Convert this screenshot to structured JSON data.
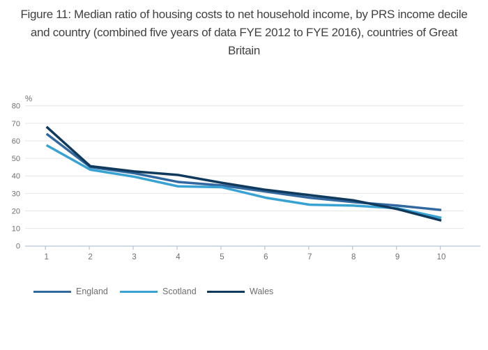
{
  "chart_data": {
    "type": "line",
    "title": "Figure 11: Median ratio of housing costs to net household income, by PRS income decile and country (combined five years of data FYE 2012 to FYE 2016), countries of Great Britain",
    "xlabel": "",
    "ylabel": "%",
    "x": [
      1,
      2,
      3,
      4,
      5,
      6,
      7,
      8,
      9,
      10
    ],
    "x_tick_labels": [
      "1",
      "2",
      "3",
      "4",
      "5",
      "6",
      "7",
      "8",
      "9",
      "10"
    ],
    "y_ticks": [
      0,
      10,
      20,
      30,
      40,
      50,
      60,
      70,
      80
    ],
    "ylim": [
      0,
      80
    ],
    "grid": true,
    "legend_position": "bottom",
    "series": [
      {
        "name": "England",
        "color": "#31689f",
        "values": [
          64,
          45,
          41.5,
          36.5,
          34.5,
          31,
          27.5,
          25,
          23,
          20.5
        ]
      },
      {
        "name": "Scotland",
        "color": "#38a3d3",
        "values": [
          57.5,
          43.5,
          39.5,
          34,
          33.5,
          27.5,
          23.5,
          23,
          21.5,
          16
        ]
      },
      {
        "name": "Wales",
        "color": "#0f3a5c",
        "values": [
          68,
          45.5,
          42.5,
          40.5,
          36,
          32,
          29,
          26,
          21,
          14.5
        ]
      }
    ],
    "style": {
      "grid_color": "#e6e6e6",
      "axis_color": "#b6c3d4",
      "tick_label_color": "#6f6f6f",
      "title_color": "#414141"
    }
  }
}
